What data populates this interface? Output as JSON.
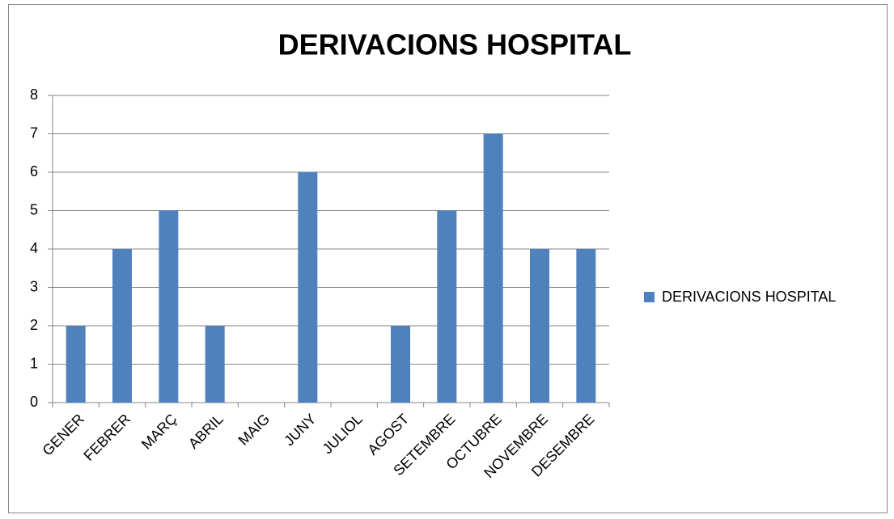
{
  "chart_data": {
    "type": "bar",
    "title": "DERIVACIONS HOSPITAL",
    "categories": [
      "GENER",
      "FEBRER",
      "MARÇ",
      "ABRIL",
      "MAIG",
      "JUNY",
      "JULIOL",
      "AGOST",
      "SETEMBRE",
      "OCTUBRE",
      "NOVEMBRE",
      "DESEMBRE"
    ],
    "series": [
      {
        "name": "DERIVACIONS HOSPITAL",
        "color": "#4f81bd",
        "values": [
          2,
          4,
          5,
          2,
          0,
          6,
          0,
          2,
          5,
          7,
          4,
          4
        ]
      }
    ],
    "ylim": [
      0,
      8
    ],
    "yticks": [
      0,
      1,
      2,
      3,
      4,
      5,
      6,
      7,
      8
    ],
    "grid": true,
    "legend": "right"
  }
}
